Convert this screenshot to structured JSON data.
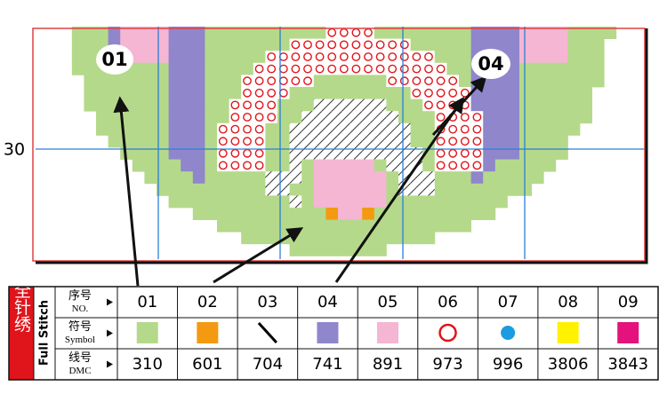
{
  "pattern": {
    "labels": [
      "01",
      "04"
    ],
    "row_label": "30"
  },
  "legend": {
    "section_cn": "全针绣",
    "section_en": "Full Stitch",
    "row_headers": [
      {
        "cn": "序号",
        "en": "NO."
      },
      {
        "cn": "符号",
        "en": "Symbol"
      },
      {
        "cn": "线号",
        "en": "DMC"
      }
    ],
    "numbers": [
      "01",
      "02",
      "03",
      "04",
      "05",
      "06",
      "07",
      "08",
      "09"
    ],
    "symbols": [
      {
        "kind": "square",
        "color": "#b5d98a"
      },
      {
        "kind": "square",
        "color": "#f39a12"
      },
      {
        "kind": "slash",
        "color": "#000000"
      },
      {
        "kind": "square",
        "color": "#8f86cc"
      },
      {
        "kind": "square",
        "color": "#f4b6d3"
      },
      {
        "kind": "ring",
        "color": "#e0141b"
      },
      {
        "kind": "dot",
        "color": "#1b9be0"
      },
      {
        "kind": "square",
        "color": "#fff200"
      },
      {
        "kind": "square",
        "color": "#e3127d"
      }
    ],
    "dmc": [
      "310",
      "601",
      "704",
      "741",
      "891",
      "973",
      "996",
      "3806",
      "3843"
    ]
  }
}
